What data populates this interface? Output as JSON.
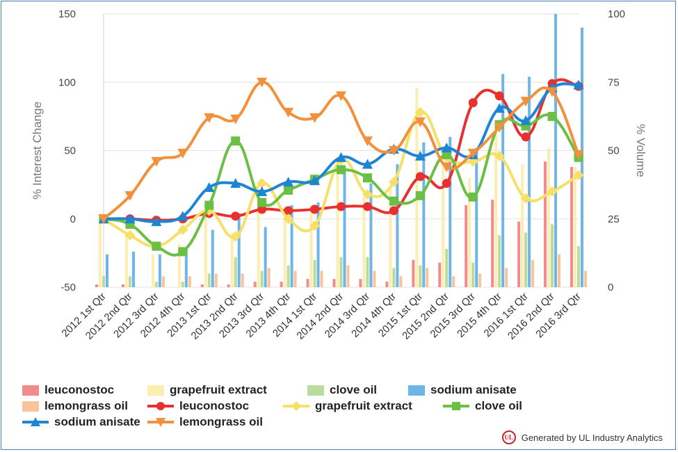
{
  "chart_data": {
    "type": "bar",
    "categories": [
      "2012 1st Qtr",
      "2012 2nd Qtr",
      "2012 3rd Qtr",
      "2012 4th Qtr",
      "2013 1st Qtr",
      "2013 2nd Qtr",
      "2013 3rd Qtr",
      "2013 4th Qtr",
      "2014 1st Qtr",
      "2014 2nd Qtr",
      "2014 3rd Qtr",
      "2014 4th Qtr",
      "2015 1st Qtr",
      "2015 2nd Qtr",
      "2015 3rd Qtr",
      "2015 4th Qtr",
      "2016 1st Qtr",
      "2016 2nd Qtr",
      "2016 3rd Qtr"
    ],
    "ylabel": "% Interest Change",
    "y2label": "% Volume",
    "ylim": [
      -50,
      150
    ],
    "y2lim": [
      0,
      100
    ],
    "yticks": [
      -50,
      0,
      50,
      100,
      150
    ],
    "y2ticks": [
      0,
      25,
      50,
      75,
      100
    ],
    "bar_series": [
      {
        "name": "leuconostoc",
        "color": "#f28b8b",
        "values": [
          1,
          1,
          0,
          0,
          1,
          1,
          2,
          2,
          3,
          3,
          3,
          2,
          10,
          9,
          30,
          32,
          24,
          46,
          44
        ]
      },
      {
        "name": "grapefruit extract",
        "color": "#fbeeb0",
        "values": [
          27,
          20,
          12,
          16,
          28,
          20,
          35,
          28,
          30,
          45,
          33,
          36,
          73,
          45,
          40,
          60,
          45,
          51,
          44
        ]
      },
      {
        "name": "clove oil",
        "color": "#b9dc9e",
        "values": [
          4,
          4,
          2,
          2,
          5,
          11,
          6,
          8,
          10,
          11,
          11,
          7,
          8,
          14,
          9,
          19,
          20,
          23,
          15
        ]
      },
      {
        "name": "sodium anisate",
        "color": "#6fb6e6",
        "values": [
          12,
          13,
          12,
          14,
          21,
          27,
          22,
          30,
          31,
          44,
          38,
          45,
          53,
          55,
          51,
          78,
          77,
          100,
          95
        ]
      },
      {
        "name": "lemongrass oil",
        "color": "#f9c49b",
        "values": [
          0,
          0,
          4,
          4,
          5,
          5,
          7,
          6,
          6,
          8,
          6,
          4,
          7,
          4,
          5,
          7,
          10,
          12,
          6
        ]
      }
    ],
    "line_series": [
      {
        "name": "leuconostoc",
        "color": "#e8312f",
        "marker": "circle",
        "values": [
          0,
          0,
          -1,
          0,
          4,
          2,
          7,
          6,
          7,
          9,
          9,
          6,
          31,
          26,
          85,
          90,
          60,
          99,
          97
        ]
      },
      {
        "name": "grapefruit extract",
        "color": "#f6e06a",
        "marker": "diamond",
        "values": [
          0,
          -12,
          -20,
          -8,
          6,
          -13,
          26,
          0,
          -5,
          43,
          18,
          27,
          78,
          45,
          42,
          46,
          15,
          20,
          32
        ]
      },
      {
        "name": "clove oil",
        "color": "#6cbf45",
        "marker": "square",
        "values": [
          0,
          -4,
          -20,
          -24,
          10,
          57,
          12,
          21,
          29,
          36,
          30,
          13,
          17,
          47,
          16,
          69,
          68,
          75,
          45
        ]
      },
      {
        "name": "sodium anisate",
        "color": "#1e84d4",
        "marker": "triangle-up",
        "values": [
          0,
          0,
          -2,
          2,
          23,
          26,
          20,
          27,
          28,
          45,
          40,
          51,
          46,
          52,
          47,
          81,
          72,
          96,
          98
        ]
      },
      {
        "name": "lemongrass oil",
        "color": "#f2913d",
        "marker": "triangle-down",
        "values": [
          0,
          17,
          42,
          48,
          74,
          73,
          100,
          78,
          74,
          90,
          57,
          50,
          71,
          38,
          48,
          67,
          86,
          93,
          47
        ]
      }
    ]
  },
  "legend": {
    "bars": [
      "leuconostoc",
      "grapefruit extract",
      "clove oil",
      "sodium anisate",
      "lemongrass oil"
    ],
    "lines": [
      "leuconostoc",
      "grapefruit extract",
      "clove oil",
      "sodium anisate",
      "lemongrass oil"
    ]
  },
  "footer": {
    "logo_text": "UL",
    "text": "Generated by UL Industry Analytics"
  }
}
